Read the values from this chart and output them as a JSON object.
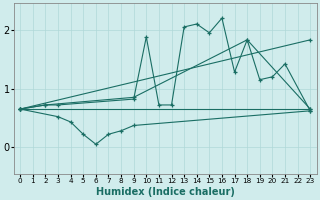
{
  "xlabel": "Humidex (Indice chaleur)",
  "ylabel": "",
  "bg_color": "#d0ecec",
  "line_color": "#1a6e64",
  "grid_color": "#b0d8d8",
  "xlim": [
    -0.5,
    23.5
  ],
  "ylim": [
    -0.45,
    2.45
  ],
  "xticks": [
    0,
    1,
    2,
    3,
    4,
    5,
    6,
    7,
    8,
    9,
    10,
    11,
    12,
    13,
    14,
    15,
    16,
    17,
    18,
    19,
    20,
    21,
    22,
    23
  ],
  "yticks": [
    0,
    1,
    2
  ],
  "series": [
    {
      "x": [
        0,
        23
      ],
      "y": [
        0.65,
        0.65
      ]
    },
    {
      "x": [
        0,
        23
      ],
      "y": [
        0.65,
        1.83
      ]
    },
    {
      "x": [
        0,
        2,
        9,
        18,
        23
      ],
      "y": [
        0.65,
        0.72,
        0.85,
        1.83,
        0.65
      ]
    },
    {
      "x": [
        0,
        2,
        3,
        9,
        10,
        11,
        12,
        13,
        14,
        15,
        16,
        17,
        18,
        19,
        20,
        21,
        23
      ],
      "y": [
        0.65,
        0.72,
        0.72,
        0.82,
        1.88,
        0.72,
        0.72,
        2.05,
        2.1,
        1.95,
        2.2,
        1.28,
        1.83,
        1.15,
        1.2,
        1.42,
        0.62
      ]
    },
    {
      "x": [
        0,
        3,
        4,
        5,
        6,
        7,
        8,
        9,
        23
      ],
      "y": [
        0.65,
        0.52,
        0.43,
        0.22,
        0.05,
        0.22,
        0.28,
        0.37,
        0.62
      ]
    }
  ]
}
